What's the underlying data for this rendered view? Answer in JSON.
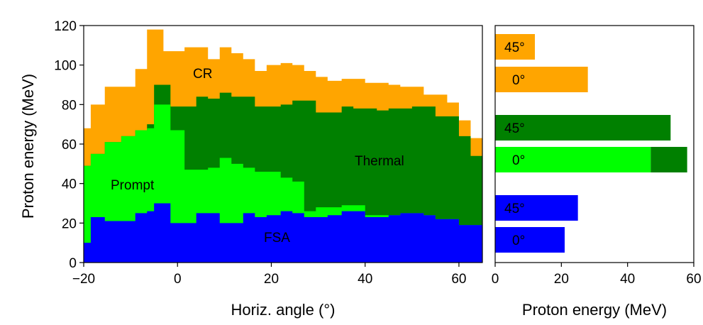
{
  "chart_data": [
    {
      "type": "area",
      "stacked": true,
      "step": true,
      "xlabel": "Horiz. angle (°)",
      "ylabel": "Proton energy (MeV)",
      "xlim": [
        -20,
        65
      ],
      "ylim": [
        0,
        120
      ],
      "xticks": [
        "−20",
        "0",
        "20",
        "40",
        "60"
      ],
      "yticks": [
        "0",
        "20",
        "40",
        "60",
        "80",
        "100",
        "120"
      ],
      "x": [
        -20,
        -18.5,
        -15.5,
        -12,
        -9,
        -6.5,
        -5,
        -3,
        -1.5,
        1.5,
        4,
        6.5,
        9,
        11.5,
        14,
        16.5,
        19,
        22,
        24.5,
        27,
        29.5,
        32,
        35,
        37.5,
        40,
        42.5,
        45,
        47.5,
        50,
        52.5,
        55,
        57.5,
        60,
        62.5
      ],
      "series": [
        {
          "name": "FSA",
          "color": "#0000ff",
          "values": [
            10,
            23,
            21,
            21,
            25,
            26,
            30,
            30,
            20,
            20,
            25,
            25,
            20,
            20,
            25,
            23,
            24,
            26,
            25,
            23,
            23,
            24,
            26,
            26,
            23,
            23,
            24,
            25,
            25,
            24,
            22,
            22,
            19,
            19
          ]
        },
        {
          "name": "Prompt",
          "color": "#00ff00",
          "values": [
            49,
            55,
            61,
            64,
            67,
            68,
            80,
            80,
            67,
            47,
            47,
            48,
            53,
            50,
            48,
            46,
            46,
            43,
            41,
            26,
            28,
            28,
            29,
            29,
            24,
            24,
            24,
            25,
            25,
            24,
            22,
            22,
            19,
            19
          ]
        },
        {
          "name": "Thermal",
          "color": "#008000",
          "values": [
            49,
            55,
            61,
            64,
            67,
            70,
            90,
            90,
            79,
            79,
            84,
            83,
            86,
            84,
            84,
            79,
            79,
            80,
            82,
            82,
            76,
            76,
            79,
            78,
            78,
            77,
            78,
            78,
            79,
            79,
            74,
            74,
            64,
            54
          ]
        },
        {
          "name": "CR",
          "color": "#ffa500",
          "values": [
            68,
            80,
            89,
            89,
            98,
            118,
            118,
            107,
            107,
            109,
            109,
            103,
            109,
            106,
            103,
            97,
            100,
            101,
            100,
            97,
            94,
            92,
            93,
            93,
            91,
            91,
            90,
            89,
            89,
            85,
            85,
            81,
            72,
            63
          ]
        }
      ],
      "annotations": [
        "CR",
        "Thermal",
        "Prompt",
        "FSA"
      ]
    },
    {
      "type": "bar",
      "orientation": "horizontal",
      "xlabel": "Proton energy (MeV)",
      "xlim": [
        0,
        60
      ],
      "xticks": [
        "0",
        "20",
        "40",
        "60"
      ],
      "bars": [
        {
          "label": "45°",
          "value": 12,
          "color": "#ffa500"
        },
        {
          "label": "0°",
          "value": 28,
          "color": "#ffa500"
        },
        {
          "label": "45°",
          "value": 53,
          "color": "#008000"
        },
        {
          "label": "0°",
          "value": 47,
          "value_total": 58,
          "color": "#00ff00",
          "color_extra": "#008000"
        },
        {
          "label": "45°",
          "value": 25,
          "color": "#0000ff"
        },
        {
          "label": "0°",
          "value": 21,
          "color": "#0000ff"
        }
      ]
    }
  ]
}
